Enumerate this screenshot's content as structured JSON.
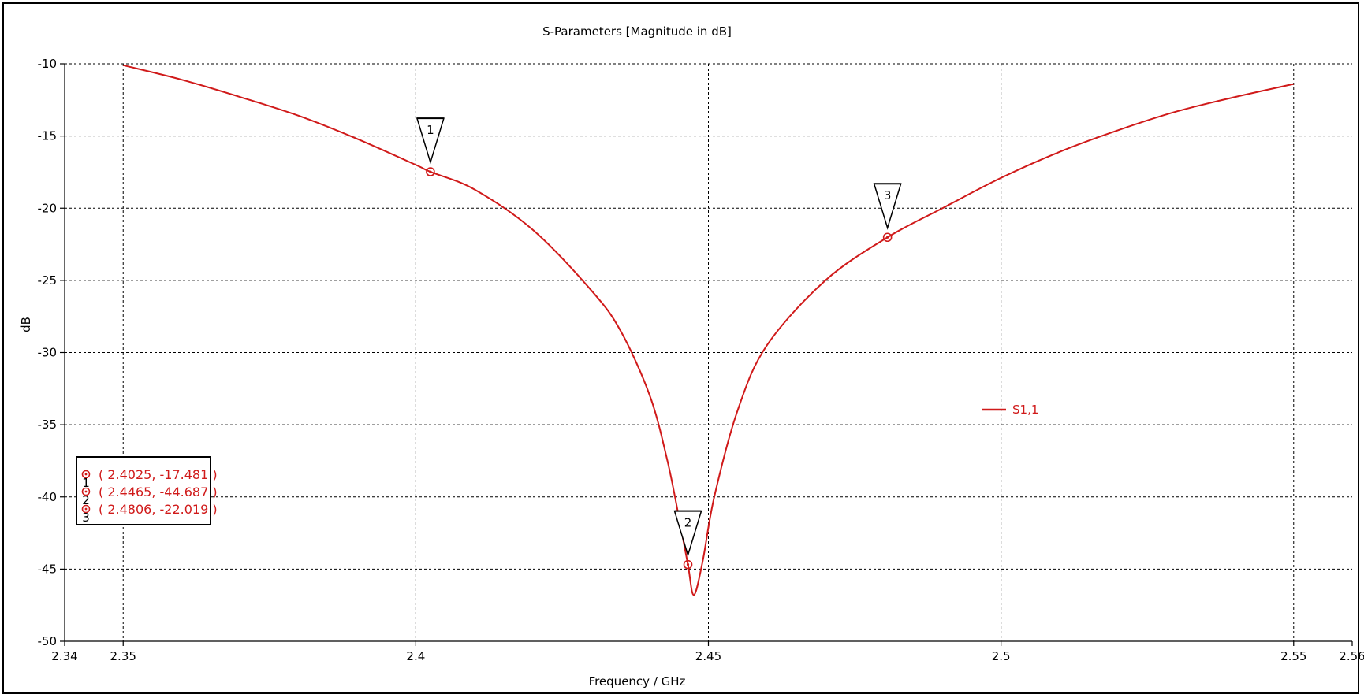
{
  "chart_data": {
    "type": "line",
    "title": "S-Parameters [Magnitude in dB]",
    "xlabel": "Frequency / GHz",
    "ylabel": "dB",
    "xlim": [
      2.34,
      2.56
    ],
    "ylim": [
      -50,
      -10
    ],
    "xticks": [
      "2.34",
      "2.35",
      "2.4",
      "2.45",
      "2.5",
      "2.55",
      "2.56"
    ],
    "yticks": [
      "-10",
      "-15",
      "-20",
      "-25",
      "-30",
      "-35",
      "-40",
      "-45",
      "-50"
    ],
    "grid": true,
    "legend_position": "right",
    "series": [
      {
        "name": "S1,1",
        "color": "#d01a1a",
        "x": [
          2.35,
          2.36,
          2.37,
          2.38,
          2.39,
          2.4,
          2.4025,
          2.41,
          2.42,
          2.43,
          2.435,
          2.44,
          2.443,
          2.445,
          2.4465,
          2.4475,
          2.449,
          2.451,
          2.455,
          2.46,
          2.47,
          2.4806,
          2.49,
          2.5,
          2.51,
          2.52,
          2.53,
          2.54,
          2.55
        ],
        "y": [
          -10.1,
          -11.1,
          -12.3,
          -13.6,
          -15.2,
          -17.0,
          -17.481,
          -18.7,
          -21.5,
          -25.7,
          -28.5,
          -33.0,
          -37.5,
          -41.5,
          -44.687,
          -46.8,
          -44.5,
          -40.0,
          -34.0,
          -29.5,
          -25.0,
          -22.019,
          -20.0,
          -17.9,
          -16.1,
          -14.6,
          -13.3,
          -12.3,
          -11.4
        ]
      }
    ],
    "markers": [
      {
        "id": "1",
        "x": 2.4025,
        "y": -17.481,
        "label": "( 2.4025, -17.481 )"
      },
      {
        "id": "2",
        "x": 2.4465,
        "y": -44.687,
        "label": "( 2.4465, -44.687 )"
      },
      {
        "id": "3",
        "x": 2.4806,
        "y": -22.019,
        "label": "( 2.4806, -22.019 )"
      }
    ]
  }
}
